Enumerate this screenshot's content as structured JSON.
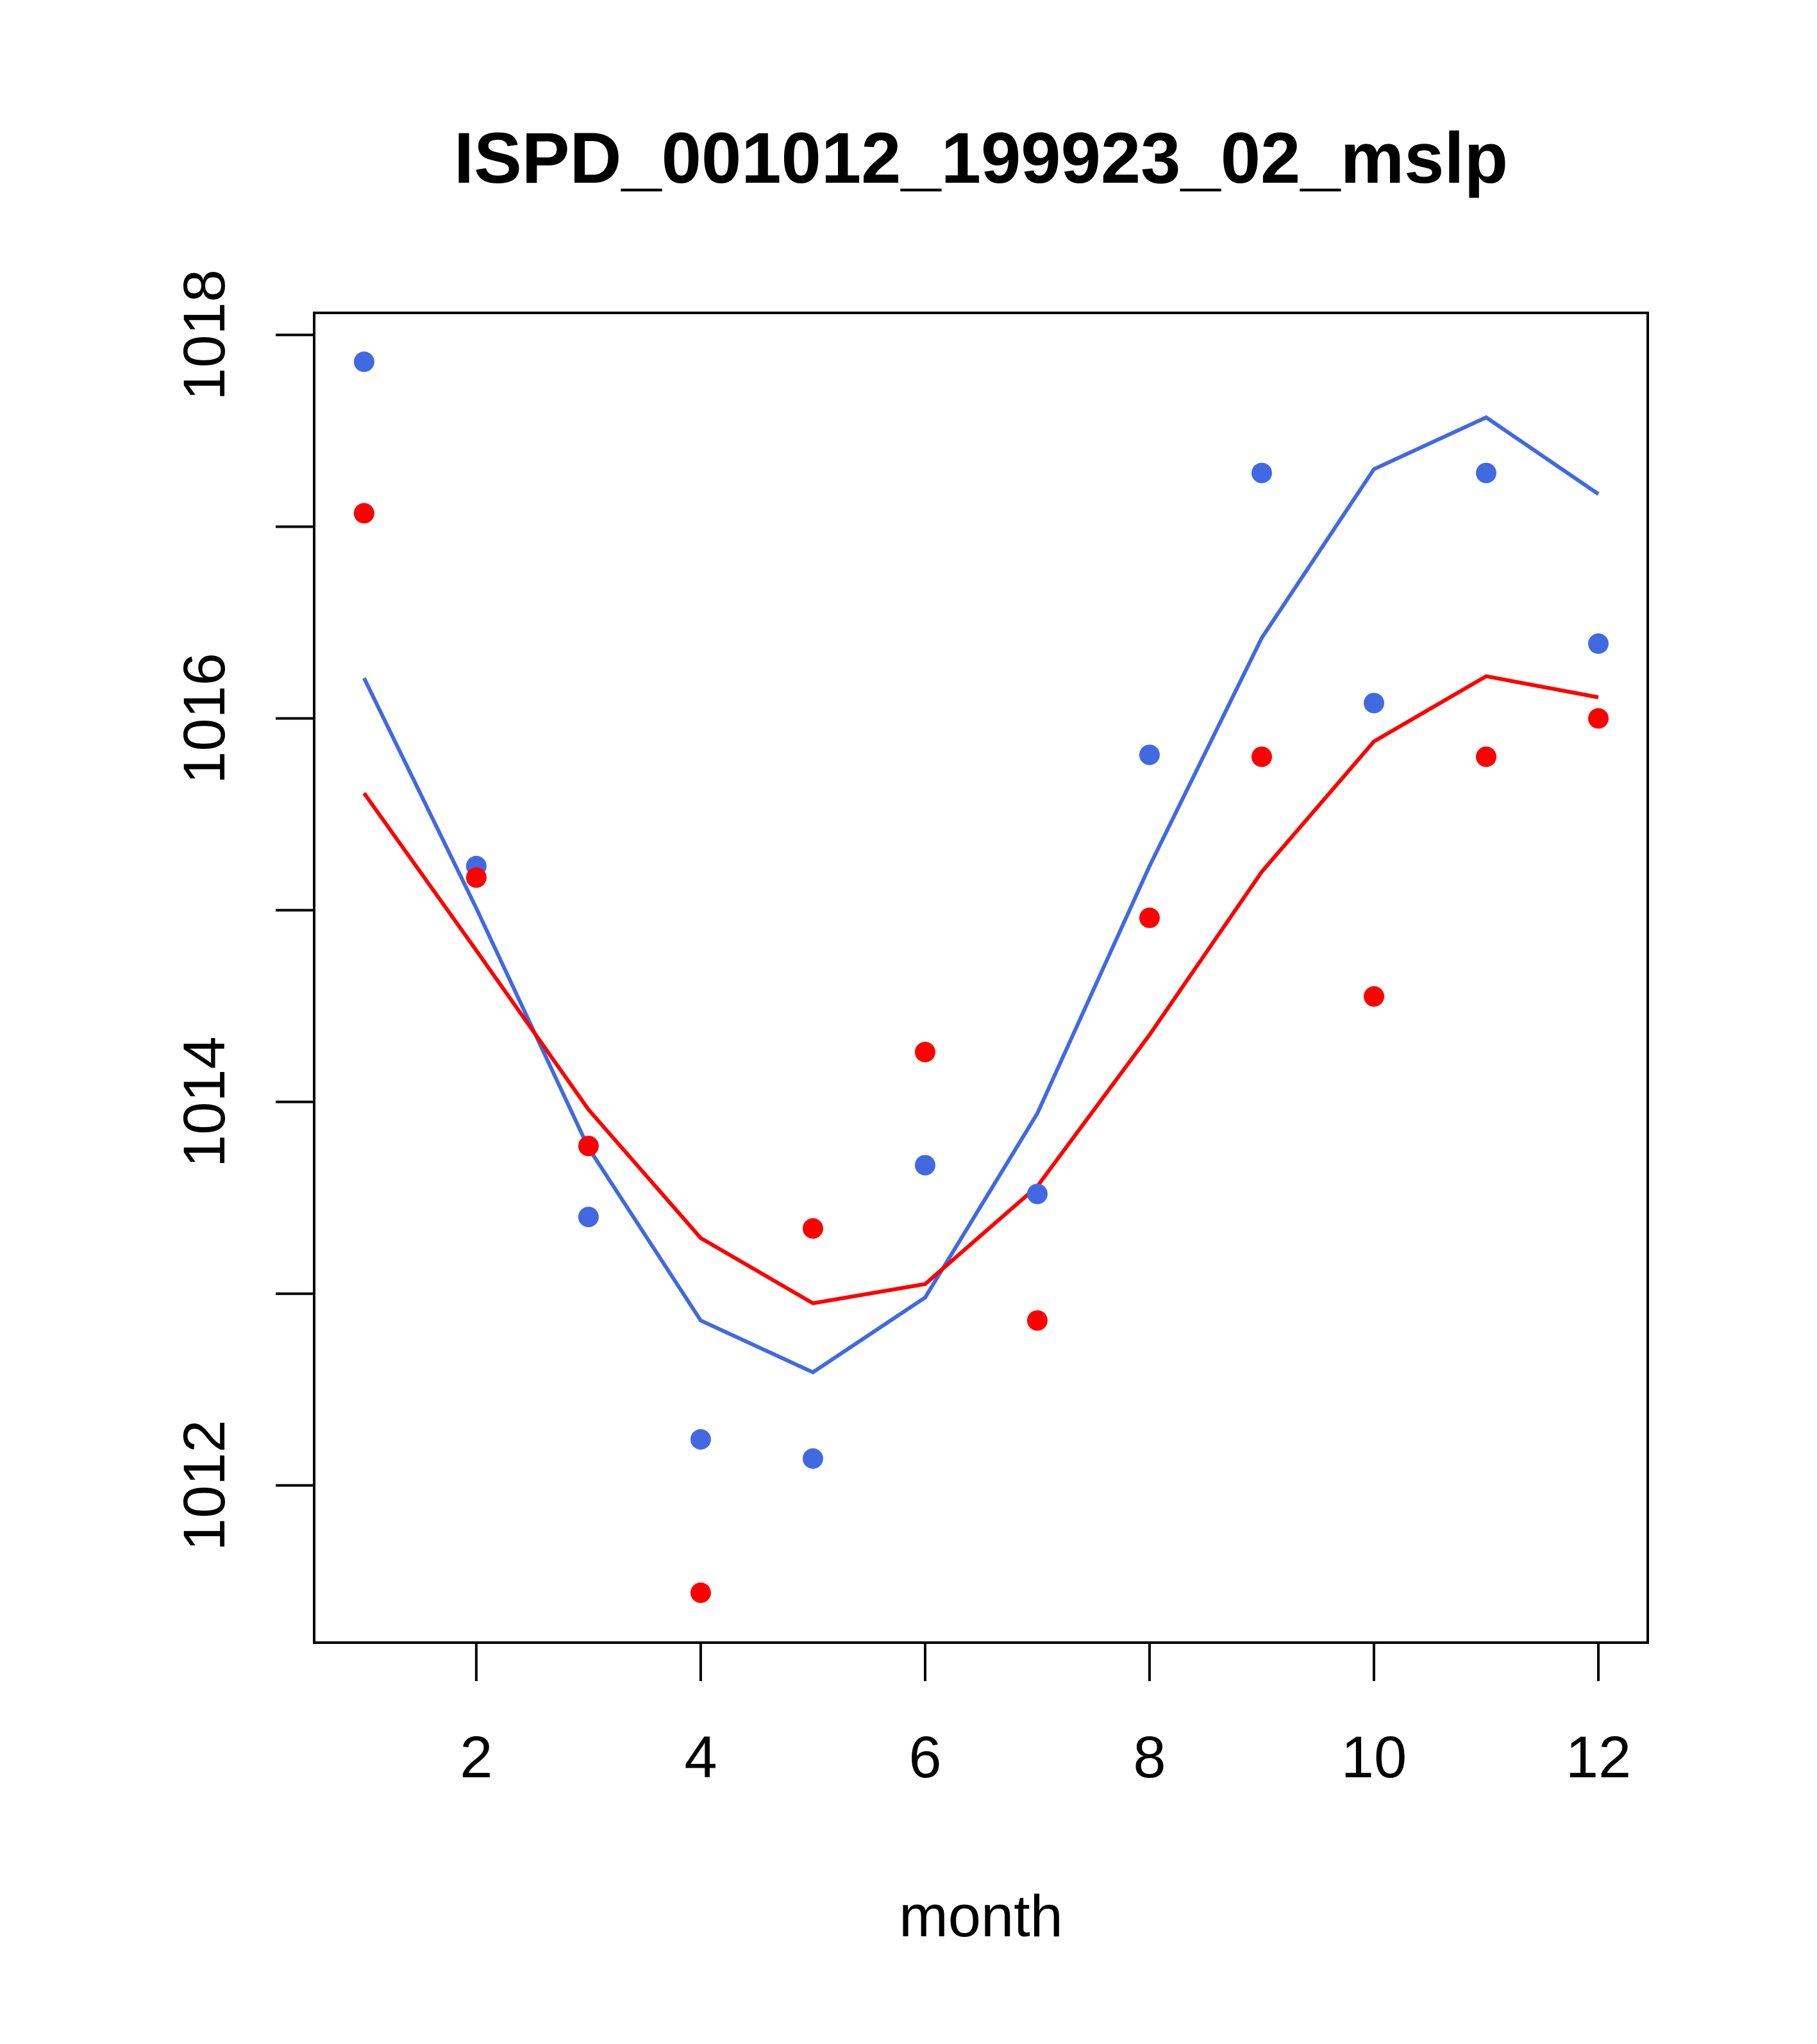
{
  "chart_data": {
    "type": "line",
    "title": "ISPD_001012_199923_02_mslp",
    "xlabel": "month",
    "ylabel": "",
    "xlim": [
      0.555,
      12.44
    ],
    "ylim": [
      1011.18,
      1018.115
    ],
    "x_ticks": [
      2,
      4,
      6,
      8,
      10,
      12
    ],
    "x_tick_labels": [
      "2",
      "4",
      "6",
      "8",
      "10",
      "12"
    ],
    "y_ticks": [
      1012,
      1013,
      1014,
      1015,
      1016,
      1017,
      1018
    ],
    "y_tick_labels": [
      "1012",
      "",
      "1014",
      "",
      "1016",
      "",
      "1018"
    ],
    "grid": false,
    "x": [
      1,
      2,
      3,
      4,
      5,
      6,
      7,
      8,
      9,
      10,
      11,
      12
    ],
    "series": [
      {
        "name": "blue points",
        "kind": "points",
        "color": "#4169E1",
        "values": [
          1017.86,
          1015.23,
          1013.4,
          1012.24,
          1012.14,
          1013.67,
          1013.52,
          1015.81,
          1017.28,
          1016.08,
          1017.28,
          1016.39
        ]
      },
      {
        "name": "red points",
        "kind": "points",
        "color": "#FF0000",
        "values": [
          1017.07,
          1015.17,
          1013.77,
          1011.44,
          1013.34,
          1014.26,
          1012.86,
          1014.96,
          1015.8,
          1014.55,
          1015.8,
          1016.0
        ]
      },
      {
        "name": "blue line",
        "kind": "line",
        "color": "#4169E1",
        "values": [
          1016.21,
          1015.01,
          1013.76,
          1012.86,
          1012.59,
          1012.98,
          1013.94,
          1015.23,
          1016.42,
          1017.3,
          1017.57,
          1017.17
        ]
      },
      {
        "name": "red line",
        "kind": "line",
        "color": "#FF0000",
        "values": [
          1015.61,
          1014.79,
          1013.96,
          1013.29,
          1012.95,
          1013.05,
          1013.56,
          1014.35,
          1015.2,
          1015.88,
          1016.22,
          1016.11
        ]
      }
    ]
  }
}
